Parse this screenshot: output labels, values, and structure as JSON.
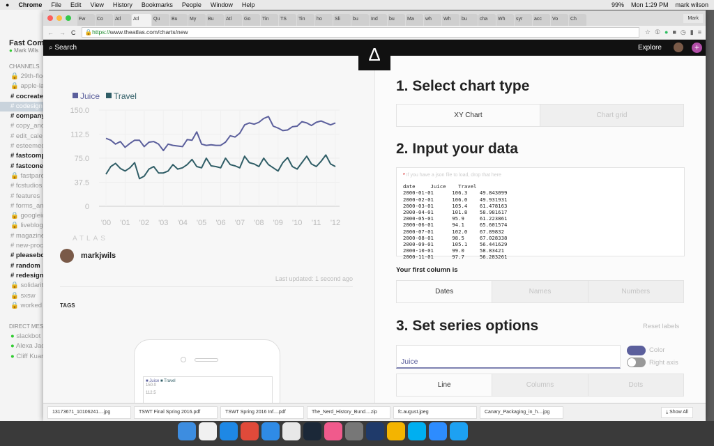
{
  "menubar": {
    "items": [
      "Chrome",
      "File",
      "Edit",
      "View",
      "History",
      "Bookmarks",
      "People",
      "Window",
      "Help"
    ],
    "battery": "99%",
    "clock": "Mon 1:29 PM",
    "user": "mark wilson"
  },
  "slack": {
    "team": "Fast Com",
    "user": "Mark Wils",
    "channels_header": "CHANNELS",
    "channels": [
      {
        "n": "29th-floo",
        "s": "lock"
      },
      {
        "n": "apple-lau",
        "s": "lock"
      },
      {
        "n": "cocreate",
        "s": "bold"
      },
      {
        "n": "codesign",
        "s": "sel"
      },
      {
        "n": "company",
        "s": "bold"
      },
      {
        "n": "copy_and",
        "s": ""
      },
      {
        "n": "edit_cale",
        "s": ""
      },
      {
        "n": "esteemed",
        "s": ""
      },
      {
        "n": "fastcomp",
        "s": "bold"
      },
      {
        "n": "fastcone",
        "s": "bold"
      },
      {
        "n": "fastparen",
        "s": "lock"
      },
      {
        "n": "fcstudios",
        "s": ""
      },
      {
        "n": "features",
        "s": ""
      },
      {
        "n": "forms_an",
        "s": ""
      },
      {
        "n": "googleio",
        "s": "lock"
      },
      {
        "n": "liveblog",
        "s": "lock"
      },
      {
        "n": "magazine",
        "s": ""
      },
      {
        "n": "new-proc",
        "s": ""
      },
      {
        "n": "pleasebo",
        "s": "bold"
      },
      {
        "n": "random",
        "s": "bold"
      },
      {
        "n": "redesign",
        "s": "bold"
      },
      {
        "n": "solidarity",
        "s": "lock"
      },
      {
        "n": "sxsw",
        "s": "lock"
      },
      {
        "n": "worked",
        "s": "lock"
      }
    ],
    "dm_header": "DIRECT MESS",
    "dms": [
      "slackbot",
      "Alexa Jac",
      "Cliff Kuar"
    ]
  },
  "browser": {
    "tabs": [
      "Fw",
      "Co",
      "Atl",
      "Atl",
      "Qu",
      "Bu",
      "My",
      "Bu",
      "Atl",
      "Go",
      "Tin",
      "TS",
      "Tin",
      "ho",
      "Sli",
      "bu",
      "Ind",
      "bu",
      "Ma",
      "wh",
      "Wh",
      "bu",
      "cha",
      "Wh",
      "syr",
      "acc",
      "Vo",
      "Ch"
    ],
    "profile": "Mark",
    "url_scheme": "https://",
    "url_rest": "www.theatlas.com/charts/new"
  },
  "site": {
    "search": "Search",
    "explore": "Explore",
    "plus": "+",
    "logo": "Δ"
  },
  "chart_data": {
    "type": "line",
    "legend": "top-left",
    "grid": true,
    "ylim": [
      0,
      150
    ],
    "yticks": [
      "150.0",
      "112.5",
      "75.0",
      "37.5",
      "0"
    ],
    "xticks": [
      "'00",
      "'01",
      "'02",
      "'03",
      "'04",
      "'05",
      "'06",
      "'07",
      "'08",
      "'09",
      "'10",
      "'11",
      "'12"
    ],
    "x_start": 2000,
    "x_end": 2012,
    "series": [
      {
        "name": "Juice",
        "color": "#5b5f9c",
        "values": [
          106,
          103,
          97,
          101,
          92,
          98,
          103,
          103,
          93,
          100,
          101,
          97,
          87,
          97,
          95,
          94,
          93,
          104,
          103,
          116,
          97,
          95,
          96,
          95,
          95,
          100,
          110,
          108,
          114,
          127,
          130,
          128,
          131,
          137,
          140,
          125,
          122,
          118,
          119,
          124,
          125,
          132,
          130,
          126,
          131,
          133,
          130,
          127,
          130
        ]
      },
      {
        "name": "Travel",
        "color": "#2f5d66",
        "values": [
          50,
          62,
          67,
          59,
          55,
          60,
          68,
          43,
          47,
          58,
          62,
          52,
          52,
          55,
          65,
          58,
          60,
          65,
          73,
          62,
          60,
          75,
          63,
          62,
          60,
          75,
          65,
          63,
          60,
          78,
          68,
          66,
          62,
          75,
          65,
          60,
          55,
          68,
          76,
          62,
          58,
          68,
          78,
          66,
          62,
          70,
          80,
          66,
          62
        ]
      }
    ],
    "watermark": "ATLAS"
  },
  "author": {
    "name": "markjwils",
    "updated": "Last updated: 1 second ago",
    "tags": "TAGS"
  },
  "preview": {
    "legend": [
      "Juice",
      "Travel"
    ],
    "ticks": [
      "150.0",
      "112.5"
    ]
  },
  "step1": {
    "title": "1. Select chart type",
    "options": [
      "XY Chart",
      "Chart grid"
    ]
  },
  "step2": {
    "title": "2. Input your data",
    "hint": "If you have a json file to load, drop that here",
    "header": "date     Juice    Travel",
    "rows": [
      "2000-01-01      106.3    49.843099",
      "2000-02-01      106.0    49.931931",
      "2000-03-01      105.4    61.478163",
      "2000-04-01      101.8    58.981617",
      "2000-05-01      95.9     61.223861",
      "2000-06-01      94.1     65.601574",
      "2000-07-01      102.0    67.89832",
      "2000-08-01      98.5     67.028338",
      "2000-09-01      105.1    56.441629",
      "2000-10-01      99.0     58.83421",
      "2000-11-01      97.7     56.283261"
    ],
    "first_col_label": "Your first column is",
    "first_col_options": [
      "Dates",
      "Names",
      "Numbers"
    ]
  },
  "step3": {
    "title": "3. Set series options",
    "reset": "Reset labels",
    "series_name": "Juice",
    "color_label": "Color",
    "right_axis_label": "Right axis",
    "types": [
      "Line",
      "Columns",
      "Dots"
    ]
  },
  "downloads": {
    "items": [
      "13173671_10106241....jpg",
      "TSWT Final Spring 2016.pdf",
      "TSWT Spring 2016 Inf....pdf",
      "The_Nerd_History_Bund....zip",
      "fc.august.jpeg",
      "Canary_Packaging_in_h....jpg"
    ],
    "show_all": "Show All"
  },
  "dock": {
    "colors": [
      "#3d8de0",
      "#f0f0f0",
      "#1e88e5",
      "#e04a3a",
      "#2f8be6",
      "#e8e8e8",
      "#1b2838",
      "#f05a8c",
      "#777",
      "#1f3a6a",
      "#f4b400",
      "#00aff0",
      "#2d8cff",
      "#1da1f2"
    ]
  }
}
